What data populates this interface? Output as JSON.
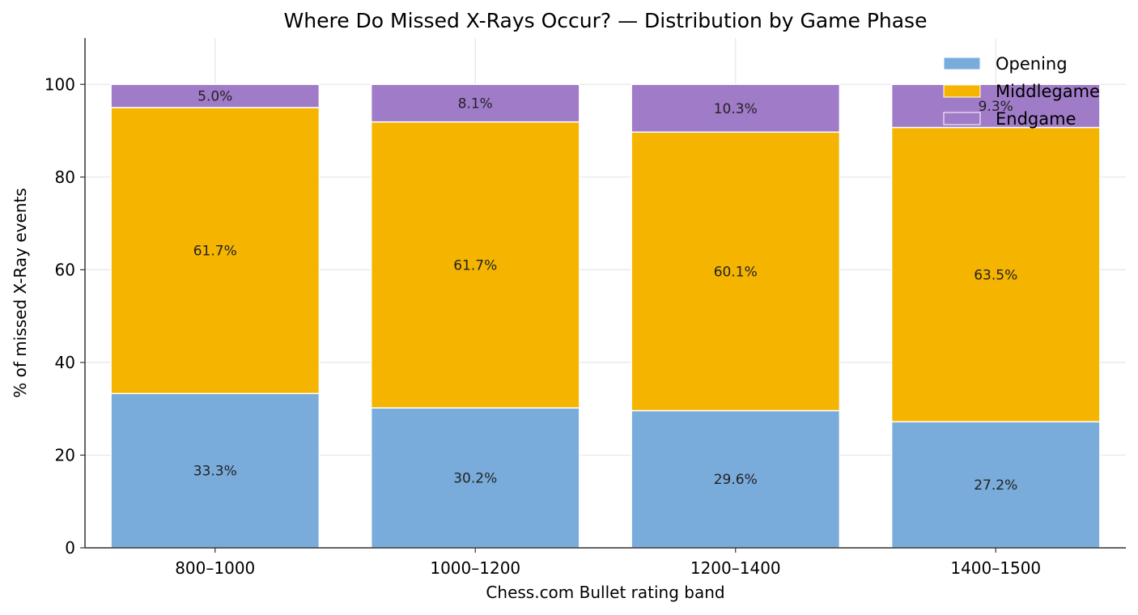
{
  "chart_data": {
    "type": "bar",
    "stacked": true,
    "title": "Where Do Missed X-Rays Occur? — Distribution by Game Phase",
    "xlabel": "Chess.com Bullet rating band",
    "ylabel": "% of missed X-Ray events",
    "ylim": [
      0,
      110
    ],
    "yticks": [
      0,
      20,
      40,
      60,
      80,
      100
    ],
    "grid": true,
    "legend_position": "top-right",
    "categories": [
      "800–1000",
      "1000–1200",
      "1200–1400",
      "1400–1500"
    ],
    "series": [
      {
        "name": "Opening",
        "color": "#79acdb",
        "values": [
          33.3,
          30.2,
          29.6,
          27.2
        ],
        "labels": [
          "33.3%",
          "30.2%",
          "29.6%",
          "27.2%"
        ]
      },
      {
        "name": "Middlegame",
        "color": "#f4b400",
        "values": [
          61.7,
          61.7,
          60.1,
          63.5
        ],
        "labels": [
          "61.7%",
          "61.7%",
          "60.1%",
          "63.5%"
        ]
      },
      {
        "name": "Endgame",
        "color": "#a07bc8",
        "values": [
          5.0,
          8.1,
          10.3,
          9.3
        ],
        "labels": [
          "5.0%",
          "8.1%",
          "10.3%",
          "9.3%"
        ]
      }
    ]
  }
}
